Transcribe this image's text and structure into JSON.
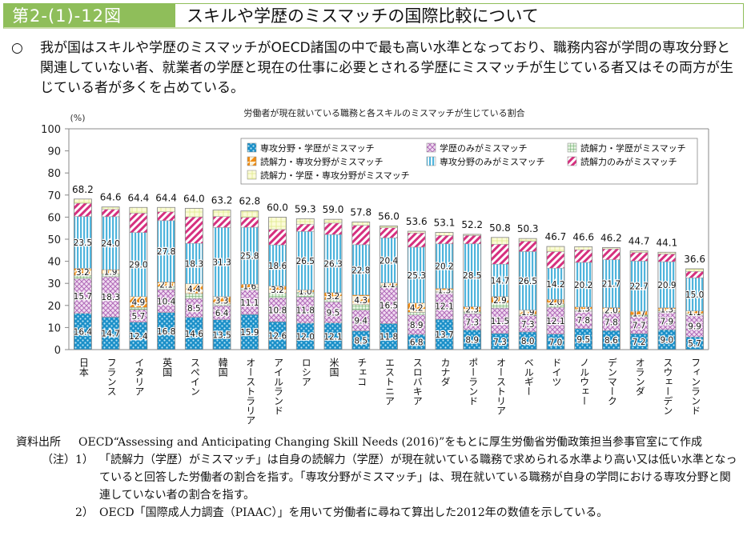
{
  "header": {
    "figure_number": "第2-(1)-12図",
    "title": "スキルや学歴のミスマッチの国際比較について"
  },
  "summary": {
    "bullet": "○",
    "text": "我が国はスキルや学歴のミスマッチがOECD諸国の中で最も高い水準となっており、職務内容が学問の専攻分野と関連していない者、就業者の学歴と現在の仕事に必要とされる学歴にミスマッチが生じている者又はその両方が生じている者が多くを占めている。"
  },
  "chart_data": {
    "type": "bar",
    "stacked": true,
    "title": "労働者が現在就いている職務と各スキルのミスマッチが生じている割合",
    "ylabel": "(%)",
    "xlabel": "",
    "ylim": [
      0,
      100
    ],
    "yticks": [
      0,
      10,
      20,
      30,
      40,
      50,
      60,
      70,
      80,
      90,
      100
    ],
    "grid": false,
    "legend_position": "top-right",
    "categories": [
      "日本",
      "フランス",
      "イタリア",
      "英国",
      "スペイン",
      "韓国",
      "オーストラリア",
      "アイルランド",
      "ロシア",
      "米国",
      "チェコ",
      "エストニア",
      "スロバキア",
      "カナダ",
      "ポーランド",
      "オーストリア",
      "ベルギー",
      "ドイツ",
      "ノルウェー",
      "デンマーク",
      "オランダ",
      "スウェーデン",
      "フィンランド"
    ],
    "totals": [
      68.2,
      64.6,
      64.4,
      64.4,
      64.0,
      63.2,
      62.8,
      60.0,
      59.3,
      59.0,
      57.8,
      56.0,
      53.6,
      53.1,
      52.2,
      50.8,
      50.3,
      46.7,
      46.6,
      46.2,
      44.7,
      44.1,
      36.6
    ],
    "series": [
      {
        "name": "専攻分野・学歴がミスマッチ",
        "pattern": "dots",
        "color": "#1a8fc8",
        "labeled": true,
        "values": [
          16.4,
          14.7,
          12.4,
          16.8,
          14.6,
          13.5,
          15.9,
          12.6,
          12.0,
          12.1,
          8.5,
          11.8,
          6.8,
          13.7,
          8.9,
          7.3,
          8.0,
          7.0,
          9.5,
          8.6,
          7.2,
          9.0,
          5.7
        ]
      },
      {
        "name": "学歴のみがミスマッチ",
        "pattern": "cross",
        "color": "#b06ab8",
        "labeled": true,
        "values": [
          15.7,
          18.3,
          5.7,
          10.4,
          8.5,
          6.4,
          11.1,
          10.8,
          11.8,
          9.5,
          9.4,
          16.5,
          8.9,
          12.1,
          7.3,
          11.5,
          7.3,
          12.1,
          7.8,
          7.8,
          7.7,
          7.9,
          9.9
        ]
      },
      {
        "name": "読解力・学歴がミスマッチ",
        "pattern": "grid",
        "color": "#5aa05a",
        "labeled": false,
        "values": [
          1.5,
          1.3,
          1.0,
          1.3,
          2.3,
          0.8,
          1.0,
          2.2,
          2.2,
          1.0,
          2.5,
          0.8,
          1.2,
          0.6,
          0.9,
          2.3,
          0.7,
          1.6,
          0.7,
          0.6,
          0.8,
          0.7,
          0.8
        ]
      },
      {
        "name": "読解力・専攻分野がミスマッチ",
        "pattern": "tri",
        "color": "#f08c14",
        "labeled": true,
        "values": [
          3.2,
          1.9,
          4.9,
          2.1,
          4.4,
          3.3,
          1.6,
          3.2,
          1.0,
          3.2,
          4.3,
          1.1,
          4.2,
          1.3,
          2.3,
          2.9,
          1.9,
          2.0,
          1.3,
          2.0,
          1.7,
          1.3,
          1.1
        ]
      },
      {
        "name": "専攻分野のみがミスマッチ",
        "pattern": "vstripe",
        "color": "#4fb4dc",
        "labeled": true,
        "values": [
          23.5,
          24.0,
          29.0,
          27.8,
          18.3,
          31.3,
          25.8,
          18.6,
          26.5,
          26.3,
          22.8,
          20.4,
          25.3,
          20.2,
          28.5,
          14.7,
          26.5,
          14.2,
          20.2,
          21.7,
          22.7,
          20.9,
          15.0
        ]
      },
      {
        "name": "読解力のみがミスマッチ",
        "pattern": "diag",
        "color": "#d6307f",
        "labeled": false,
        "values": [
          6.0,
          3.3,
          8.8,
          4.0,
          12.0,
          5.0,
          4.5,
          7.0,
          3.3,
          5.2,
          8.8,
          4.6,
          6.4,
          3.8,
          3.8,
          9.0,
          4.7,
          7.5,
          5.7,
          4.9,
          3.9,
          3.5,
          2.9
        ]
      },
      {
        "name": "読解力・学歴・専攻分野がミスマッチ",
        "pattern": "checker",
        "color": "#e6ee9a",
        "labeled": false,
        "values": [
          1.9,
          1.1,
          2.6,
          2.0,
          3.9,
          2.9,
          2.9,
          5.6,
          2.5,
          1.7,
          1.5,
          0.8,
          0.8,
          1.4,
          0.5,
          3.1,
          1.2,
          2.3,
          1.4,
          0.6,
          0.7,
          0.8,
          1.2
        ]
      }
    ]
  },
  "notes": {
    "source_label": "資料出所",
    "source_text": "OECD“Assessing and Anticipating Changing Skill Needs (2016)”をもとに厚生労働省労働政策担当参事官室にて作成",
    "note_label": "（注）",
    "items": [
      {
        "num": "1）",
        "text": "「読解力（学歴）がミスマッチ」は自身の読解力（学歴）が現在就いている職務で求められる水準より高い又は低い水準となっていると回答した労働者の割合を指す。「専攻分野がミスマッチ」は、現在就いている職務が自身の学問における専攻分野と関連していない者の割合を指す。"
      },
      {
        "num": "2）",
        "text": "OECD「国際成人力調査（PIAAC）」を用いて労働者に尋ねて算出した2012年の数値を示している。"
      }
    ]
  }
}
